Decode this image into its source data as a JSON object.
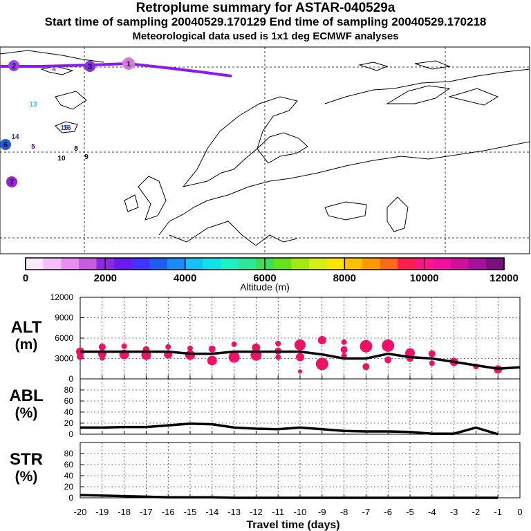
{
  "header": {
    "title": "Retroplume summary for ASTAR-040529a",
    "subtitle": "Start time of sampling 20040529.170129     End time of sampling 20040529.170218",
    "met_line": "Meteorological data used is 1x1 deg ECMWF analyses"
  },
  "map": {
    "day_markers": [
      {
        "label": "1",
        "color": "#d67ae0",
        "size": "large"
      },
      {
        "label": "2",
        "color": "#a040ff",
        "size": "medium"
      },
      {
        "label": "3",
        "color": "#8a2be2",
        "size": "medium"
      },
      {
        "label": "4",
        "color": "#8a2be2",
        "size": "small"
      },
      {
        "label": "5",
        "color": "#4b0082",
        "size": "small"
      },
      {
        "label": "6",
        "color": "#1e5fe0",
        "size": "medium"
      },
      {
        "label": "7",
        "color": "#9a20e0",
        "size": "medium"
      },
      {
        "label": "8",
        "color": "#000000",
        "size": "small"
      },
      {
        "label": "9",
        "color": "#000000",
        "size": "small"
      },
      {
        "label": "10",
        "color": "#000000",
        "size": "small"
      },
      {
        "label": "13",
        "color": "#2ec0ff",
        "size": "small"
      },
      {
        "label": "14",
        "color": "#1040c0",
        "size": "small"
      },
      {
        "label": "15",
        "color": "#1060d0",
        "size": "small"
      },
      {
        "label": "16",
        "color": "#2b2bff",
        "size": "small"
      }
    ]
  },
  "colorbar": {
    "colors": [
      "#fde8fd",
      "#f7bff7",
      "#e98ff0",
      "#c65ce0",
      "#8a2be2",
      "#6a1cf0",
      "#4433ff",
      "#1f5cf0",
      "#1b8cf5",
      "#17c0f5",
      "#0de3e6",
      "#1df2c4",
      "#2ee89a",
      "#3ddc5a",
      "#66e21c",
      "#a2ea10",
      "#d6ee16",
      "#ffe600",
      "#ffc000",
      "#ff9a00",
      "#ff6a1a",
      "#ff1f4f",
      "#ff148a",
      "#f20f9e",
      "#d10f9a",
      "#a5129a",
      "#7a0f7e"
    ],
    "major_ticks": [
      "0",
      "2000",
      "4000",
      "6000",
      "8000",
      "10000",
      "12000"
    ],
    "label": "Altitude (m)"
  },
  "chart_data": [
    {
      "type": "line",
      "name": "ALT",
      "ylabel": "ALT\n(m)",
      "ylabel_lines": [
        "ALT",
        "(m)"
      ],
      "ylim": [
        0,
        12000
      ],
      "yticks": [
        "12000",
        "9000",
        "6000",
        "3000",
        "0"
      ],
      "x": [
        -20,
        -19,
        -18,
        -17,
        -16,
        -15,
        -14,
        -13,
        -12,
        -11,
        -10,
        -9,
        -8,
        -7,
        -6,
        -5,
        -4,
        -3,
        -2,
        -1,
        0
      ],
      "mean_altitude": [
        4000,
        4000,
        4000,
        4000,
        4000,
        3700,
        3700,
        4000,
        4000,
        4000,
        4000,
        3600,
        3000,
        3000,
        3700,
        3200,
        3000,
        2500,
        2000,
        1500,
        1700
      ],
      "clusters": [
        {
          "x": -20,
          "alts": [
            4000,
            3300
          ],
          "size": [
            6,
            5
          ]
        },
        {
          "x": -19,
          "alts": [
            4700,
            3700,
            3100
          ],
          "size": [
            5,
            6,
            4
          ]
        },
        {
          "x": -18,
          "alts": [
            4800,
            3600
          ],
          "size": [
            4,
            7
          ]
        },
        {
          "x": -17,
          "alts": [
            4300,
            3500
          ],
          "size": [
            5,
            7
          ]
        },
        {
          "x": -16,
          "alts": [
            4700,
            3600
          ],
          "size": [
            4,
            6
          ]
        },
        {
          "x": -15,
          "alts": [
            4500,
            3500
          ],
          "size": [
            4,
            7
          ]
        },
        {
          "x": -14,
          "alts": [
            4400,
            2700
          ],
          "size": [
            5,
            7
          ]
        },
        {
          "x": -13,
          "alts": [
            5100,
            3200
          ],
          "size": [
            4,
            8
          ]
        },
        {
          "x": -12,
          "alts": [
            4600,
            3500
          ],
          "size": [
            6,
            8
          ]
        },
        {
          "x": -11,
          "alts": [
            5200,
            4100,
            3200
          ],
          "size": [
            4,
            5,
            4
          ]
        },
        {
          "x": -10,
          "alts": [
            5000,
            3200,
            1100
          ],
          "size": [
            8,
            6,
            3
          ]
        },
        {
          "x": -9,
          "alts": [
            5700,
            2200
          ],
          "size": [
            6,
            9
          ]
        },
        {
          "x": -8,
          "alts": [
            5400,
            4300,
            3400
          ],
          "size": [
            4,
            5,
            4
          ]
        },
        {
          "x": -7,
          "alts": [
            4800,
            1800
          ],
          "size": [
            9,
            5
          ]
        },
        {
          "x": -6,
          "alts": [
            4900,
            2800
          ],
          "size": [
            9,
            5
          ]
        },
        {
          "x": -5,
          "alts": [
            3800,
            3000
          ],
          "size": [
            7,
            5
          ]
        },
        {
          "x": -4,
          "alts": [
            3700,
            2300
          ],
          "size": [
            5,
            4
          ]
        },
        {
          "x": -3,
          "alts": [
            2500
          ],
          "size": [
            6
          ]
        },
        {
          "x": -2,
          "alts": [
            1800
          ],
          "size": [
            4
          ]
        },
        {
          "x": -1,
          "alts": [
            1400
          ],
          "size": [
            6
          ]
        }
      ]
    },
    {
      "type": "line",
      "name": "ABL",
      "ylabel": "ABL\n(%)",
      "ylabel_lines": [
        "ABL",
        "(%)"
      ],
      "ylim": [
        0,
        100
      ],
      "yticks": [
        "80",
        "60",
        "40",
        "20",
        "0"
      ],
      "x": [
        -20,
        -19,
        -18,
        -17,
        -16,
        -15,
        -14,
        -13,
        -12,
        -11,
        -10,
        -9,
        -8,
        -7,
        -6,
        -5,
        -4,
        -3,
        -2,
        -1
      ],
      "values": [
        12,
        12,
        13,
        13,
        16,
        19,
        18,
        12,
        10,
        9,
        12,
        9,
        6,
        5,
        5,
        4,
        1,
        1,
        12,
        0
      ]
    },
    {
      "type": "line",
      "name": "STR",
      "ylabel": "STR\n(%)",
      "ylabel_lines": [
        "STR",
        "(%)"
      ],
      "ylim": [
        0,
        100
      ],
      "yticks": [
        "80",
        "60",
        "40",
        "20",
        "0"
      ],
      "x": [
        -20,
        -19,
        -18,
        -17,
        -16,
        -15,
        -14,
        -13,
        -12,
        -11,
        -10,
        -9,
        -8,
        -7,
        -6,
        -5,
        -4,
        -3,
        -2,
        -1
      ],
      "values": [
        5,
        4,
        3,
        2,
        1,
        1,
        1,
        0,
        0,
        0,
        0,
        0,
        0,
        0,
        0,
        0,
        0,
        0,
        0,
        0
      ]
    }
  ],
  "x_axis": {
    "ticks": [
      "-20",
      "-19",
      "-18",
      "-17",
      "-16",
      "-15",
      "-14",
      "-13",
      "-12",
      "-11",
      "-10",
      "-9",
      "-8",
      "-7",
      "-6",
      "-5",
      "-4",
      "-3",
      "-2",
      "-1",
      "0"
    ],
    "label": "Travel time (days)"
  }
}
